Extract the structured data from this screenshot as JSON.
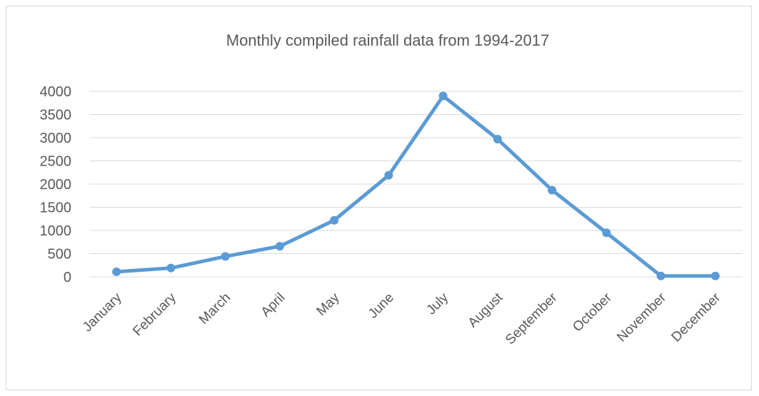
{
  "chart_data": {
    "type": "line",
    "title": "Monthly compiled rainfall data from 1994-2017",
    "xlabel": "",
    "ylabel": "",
    "categories": [
      "January",
      "February",
      "March",
      "April",
      "May",
      "June",
      "July",
      "August",
      "September",
      "October",
      "November",
      "December"
    ],
    "series": [
      {
        "values": [
          110,
          190,
          440,
          660,
          1220,
          2190,
          3900,
          2970,
          1870,
          950,
          20,
          20
        ]
      }
    ],
    "ylim": [
      0,
      4000
    ],
    "yticks": [
      0,
      500,
      1000,
      1500,
      2000,
      2500,
      3000,
      3500,
      4000
    ],
    "grid": true,
    "legend": "none",
    "colors": {
      "line": "#5b9bd5",
      "grid": "#d9d9d9",
      "text": "#595959"
    }
  }
}
